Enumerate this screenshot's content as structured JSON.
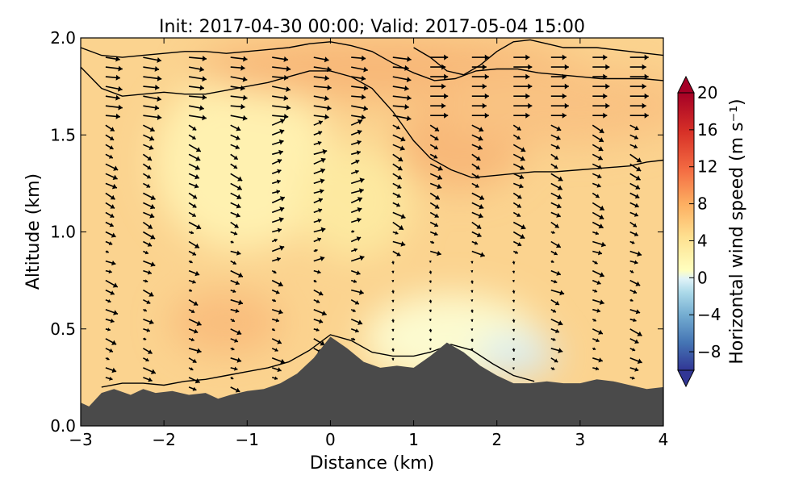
{
  "chart_data": {
    "type": "heatmap",
    "title": "Init: 2017-04-30 00:00; Valid: 2017-05-04 15:00",
    "xlabel": "Distance (km)",
    "ylabel": "Altitude (km)",
    "xlim": [
      -3,
      4
    ],
    "ylim": [
      0.0,
      2.0
    ],
    "x_ticks": [
      -3,
      -2,
      -1,
      0,
      1,
      2,
      3,
      4
    ],
    "x_tick_labels": [
      "−3",
      "−2",
      "−1",
      "0",
      "1",
      "2",
      "3",
      "4"
    ],
    "y_ticks": [
      0.0,
      0.5,
      1.0,
      1.5,
      2.0
    ],
    "y_tick_labels": [
      "0.0",
      "0.5",
      "1.0",
      "1.5",
      "2.0"
    ],
    "colorbar": {
      "label": "Horizontal wind speed (m s⁻¹)",
      "range": [
        -10,
        20
      ],
      "ticks": [
        -8,
        -4,
        0,
        4,
        8,
        12,
        16,
        20
      ],
      "tick_labels": [
        "−8",
        "−4",
        "0",
        "4",
        "8",
        "12",
        "16",
        "20"
      ],
      "extend": "both",
      "colormap": "RdYlBu_r"
    },
    "terrain": {
      "x": [
        -3.0,
        -2.9,
        -2.75,
        -2.6,
        -2.4,
        -2.25,
        -2.1,
        -1.9,
        -1.7,
        -1.5,
        -1.35,
        -1.2,
        -1.0,
        -0.8,
        -0.6,
        -0.4,
        -0.2,
        0.0,
        0.2,
        0.4,
        0.6,
        0.8,
        1.0,
        1.2,
        1.4,
        1.6,
        1.8,
        2.0,
        2.2,
        2.4,
        2.6,
        2.8,
        3.0,
        3.2,
        3.4,
        3.6,
        3.8,
        4.0
      ],
      "y": [
        0.12,
        0.1,
        0.17,
        0.19,
        0.16,
        0.19,
        0.17,
        0.18,
        0.16,
        0.17,
        0.14,
        0.16,
        0.18,
        0.19,
        0.22,
        0.27,
        0.35,
        0.46,
        0.4,
        0.33,
        0.3,
        0.31,
        0.3,
        0.36,
        0.43,
        0.38,
        0.31,
        0.26,
        0.22,
        0.22,
        0.23,
        0.22,
        0.22,
        0.24,
        0.23,
        0.21,
        0.19,
        0.2
      ]
    },
    "contours": [
      {
        "x": [
          -2.75,
          -2.5,
          -2.25,
          -2.0,
          -1.75,
          -1.5,
          -1.25,
          -1.0,
          -0.75,
          -0.5,
          -0.25,
          0.0,
          0.25,
          0.5,
          0.75,
          1.0,
          1.2,
          1.45,
          1.7,
          1.95,
          2.2,
          2.45
        ],
        "y": [
          0.2,
          0.22,
          0.22,
          0.21,
          0.23,
          0.24,
          0.26,
          0.28,
          0.3,
          0.33,
          0.39,
          0.47,
          0.44,
          0.38,
          0.36,
          0.36,
          0.38,
          0.42,
          0.39,
          0.32,
          0.26,
          0.23
        ]
      },
      {
        "x": [
          -3.0,
          -2.75,
          -2.5,
          -2.25,
          -2.0,
          -1.75,
          -1.5,
          -1.25,
          -1.0,
          -0.75,
          -0.5,
          -0.25,
          0.0,
          0.25,
          0.5,
          0.75,
          1.0,
          1.2,
          1.45,
          1.7,
          1.95,
          2.2,
          2.45,
          2.7,
          3.0,
          3.3,
          3.6,
          3.8,
          4.0
        ],
        "y": [
          1.85,
          1.74,
          1.7,
          1.71,
          1.72,
          1.71,
          1.71,
          1.73,
          1.75,
          1.77,
          1.8,
          1.83,
          1.83,
          1.8,
          1.74,
          1.62,
          1.47,
          1.38,
          1.32,
          1.28,
          1.29,
          1.3,
          1.31,
          1.31,
          1.32,
          1.33,
          1.34,
          1.36,
          1.37
        ]
      },
      {
        "x": [
          -3.0,
          -2.75,
          -2.5,
          -2.25,
          -2.0,
          -1.75,
          -1.5,
          -1.25,
          -1.0,
          -0.75,
          -0.5,
          -0.25,
          0.0,
          0.25,
          0.5,
          0.75,
          1.0,
          1.25,
          1.5,
          1.75,
          2.0,
          2.25,
          2.5,
          2.75,
          3.0,
          3.25,
          3.5,
          3.75,
          4.0
        ],
        "y": [
          1.95,
          1.91,
          1.9,
          1.91,
          1.92,
          1.93,
          1.93,
          1.92,
          1.93,
          1.94,
          1.95,
          1.97,
          1.98,
          1.96,
          1.93,
          1.87,
          1.82,
          1.78,
          1.79,
          1.83,
          1.84,
          1.84,
          1.82,
          1.81,
          1.8,
          1.79,
          1.79,
          1.79,
          1.78
        ]
      },
      {
        "x": [
          1.0,
          1.2,
          1.4,
          1.6,
          1.8,
          2.0,
          2.2,
          2.4,
          2.6,
          2.8,
          3.0,
          3.2,
          3.4,
          3.6,
          3.8,
          4.0
        ],
        "y": [
          1.95,
          1.9,
          1.83,
          1.81,
          1.86,
          1.93,
          1.98,
          1.99,
          1.97,
          1.95,
          1.95,
          1.95,
          1.94,
          1.93,
          1.92,
          1.91
        ]
      }
    ],
    "wind_arrows": {
      "columns_x": [
        -2.7,
        -2.25,
        -1.7,
        -1.2,
        -0.7,
        -0.2,
        0.25,
        0.75,
        1.2,
        1.7,
        2.2,
        2.65,
        3.15,
        3.6
      ],
      "rows_y": [
        0.2,
        0.25,
        0.3,
        0.35,
        0.4,
        0.45,
        0.5,
        0.55,
        0.6,
        0.65,
        0.7,
        0.75,
        0.8,
        0.85,
        0.9,
        0.95,
        1.0,
        1.05,
        1.1,
        1.15,
        1.2,
        1.25,
        1.3,
        1.35,
        1.4,
        1.45,
        1.5,
        1.55,
        1.6,
        1.65,
        1.7,
        1.75,
        1.8,
        1.85,
        1.9
      ]
    }
  }
}
